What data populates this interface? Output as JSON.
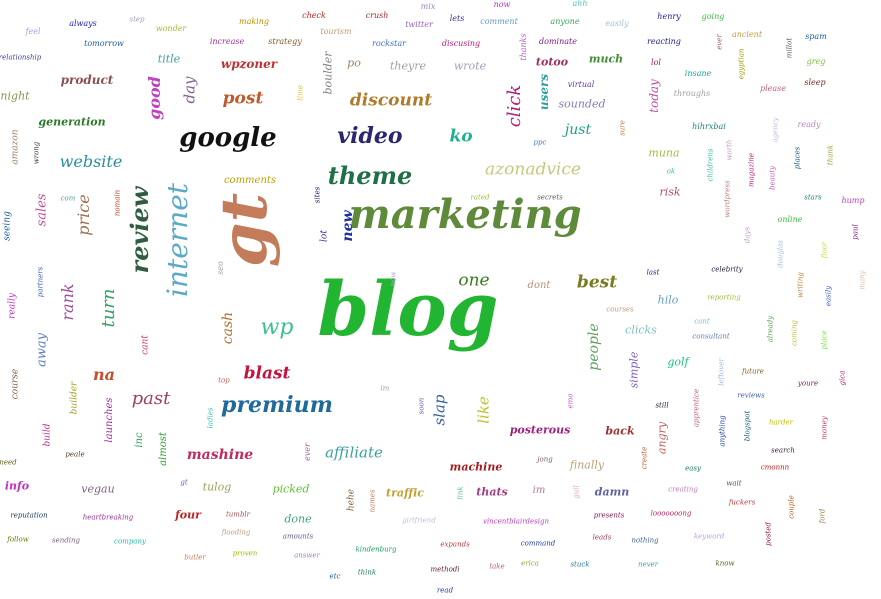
{
  "cloud": {
    "words": [
      {
        "text": "blog",
        "color": "#22b531"
      },
      {
        "text": "marketing",
        "color": "#5e8a3a"
      },
      {
        "text": "gt",
        "color": "#c37b5a"
      },
      {
        "text": "internet",
        "color": "#5aa9c7"
      },
      {
        "text": "google",
        "color": "#111111"
      },
      {
        "text": "theme",
        "color": "#1f6f47"
      },
      {
        "text": "video",
        "color": "#2a2670"
      },
      {
        "text": "premium",
        "color": "#1f6a9a"
      },
      {
        "text": "review",
        "color": "#2f5d3f"
      },
      {
        "text": "azonadvice",
        "color": "#c6c87b"
      },
      {
        "text": "wp",
        "color": "#3cc08f"
      },
      {
        "text": "discount",
        "color": "#b07a2b"
      },
      {
        "text": "website",
        "color": "#2a8f9a"
      },
      {
        "text": "blast",
        "color": "#c4123e"
      },
      {
        "text": "best",
        "color": "#7a7a1f"
      },
      {
        "text": "one",
        "color": "#3a7a1f"
      },
      {
        "text": "click",
        "color": "#b0207a"
      },
      {
        "text": "turn",
        "color": "#3aa26a"
      },
      {
        "text": "rank",
        "color": "#a050a0"
      },
      {
        "text": "price",
        "color": "#a07050"
      },
      {
        "text": "past",
        "color": "#a04060"
      },
      {
        "text": "na",
        "color": "#c05030"
      },
      {
        "text": "post",
        "color": "#c05a2a"
      },
      {
        "text": "affiliate",
        "color": "#3aa0a0"
      },
      {
        "text": "like",
        "color": "#c0c030"
      },
      {
        "text": "slap",
        "color": "#3a60a0"
      },
      {
        "text": "ko",
        "color": "#20b090"
      },
      {
        "text": "just",
        "color": "#20a080"
      },
      {
        "text": "people",
        "color": "#60a060"
      },
      {
        "text": "mashine",
        "color": "#c02a60"
      },
      {
        "text": "sales",
        "color": "#c050a0"
      },
      {
        "text": "away",
        "color": "#6080c0"
      },
      {
        "text": "good",
        "color": "#c040c0"
      },
      {
        "text": "day",
        "color": "#806090"
      },
      {
        "text": "wpzoner",
        "color": "#c03030"
      },
      {
        "text": "cash",
        "color": "#b07030"
      },
      {
        "text": "new",
        "color": "#2030a0"
      },
      {
        "text": "product",
        "color": "#8a5050"
      },
      {
        "text": "generation",
        "color": "#2a7a2a"
      },
      {
        "text": "night",
        "color": "#909050"
      },
      {
        "text": "title",
        "color": "#40a0a0"
      },
      {
        "text": "users",
        "color": "#30a0a0"
      },
      {
        "text": "today",
        "color": "#c050a0"
      },
      {
        "text": "much",
        "color": "#409030"
      },
      {
        "text": "sounded",
        "color": "#8080c0"
      },
      {
        "text": "totoo",
        "color": "#a03060"
      },
      {
        "text": "wrote",
        "color": "#a0a0c0"
      },
      {
        "text": "theyre",
        "color": "#a0a0a0"
      },
      {
        "text": "boulder",
        "color": "#808080"
      },
      {
        "text": "po",
        "color": "#a08060"
      },
      {
        "text": "comments",
        "color": "#c0a000"
      },
      {
        "text": "muna",
        "color": "#a0c040"
      },
      {
        "text": "risk",
        "color": "#b05060"
      },
      {
        "text": "hilo",
        "color": "#60a0c0"
      },
      {
        "text": "golf",
        "color": "#20c080"
      },
      {
        "text": "simple",
        "color": "#8060c0"
      },
      {
        "text": "clicks",
        "color": "#80c0c0"
      },
      {
        "text": "finally",
        "color": "#c0a070"
      },
      {
        "text": "back",
        "color": "#a03030"
      },
      {
        "text": "angry",
        "color": "#c06060"
      },
      {
        "text": "posterous",
        "color": "#a02080"
      },
      {
        "text": "machine",
        "color": "#a02020"
      },
      {
        "text": "thats",
        "color": "#a04080"
      },
      {
        "text": "damn",
        "color": "#6060a0"
      },
      {
        "text": "traffic",
        "color": "#c0a030"
      },
      {
        "text": "picked",
        "color": "#60c030"
      },
      {
        "text": "done",
        "color": "#40a080"
      },
      {
        "text": "four",
        "color": "#c02020"
      },
      {
        "text": "tulog",
        "color": "#a0a060"
      },
      {
        "text": "vegau",
        "color": "#806080"
      },
      {
        "text": "info",
        "color": "#c030c0"
      },
      {
        "text": "inc",
        "color": "#30a060"
      },
      {
        "text": "almost",
        "color": "#30a030"
      },
      {
        "text": "launches",
        "color": "#a030a0"
      },
      {
        "text": "builder",
        "color": "#a0a020"
      },
      {
        "text": "build",
        "color": "#c03080"
      },
      {
        "text": "course",
        "color": "#806040"
      },
      {
        "text": "really",
        "color": "#c030c0"
      },
      {
        "text": "seeing",
        "color": "#2060a0"
      },
      {
        "text": "amazon",
        "color": "#a08060"
      },
      {
        "text": "dont",
        "color": "#c09080"
      },
      {
        "text": "im",
        "color": "#c070a0"
      },
      {
        "text": "hehe",
        "color": "#806040"
      },
      {
        "text": "lot",
        "color": "#3030a0"
      },
      {
        "text": "cant",
        "color": "#c04060"
      },
      {
        "text": "seo",
        "color": "#a0a0a0"
      },
      {
        "text": "ever",
        "color": "#a060a0"
      },
      {
        "text": "feel",
        "color": "#a0a0e0"
      },
      {
        "text": "always",
        "color": "#2020c0"
      },
      {
        "text": "tomorrow",
        "color": "#2060a0"
      },
      {
        "text": "relationship",
        "color": "#4040a0"
      },
      {
        "text": "step",
        "color": "#a0a0c0"
      },
      {
        "text": "wonder",
        "color": "#a0c040"
      },
      {
        "text": "making",
        "color": "#c09000"
      },
      {
        "text": "increase",
        "color": "#a030a0"
      },
      {
        "text": "strategy",
        "color": "#8a5a2a"
      },
      {
        "text": "check",
        "color": "#c02020"
      },
      {
        "text": "tourism",
        "color": "#c0a070"
      },
      {
        "text": "crush",
        "color": "#a03030"
      },
      {
        "text": "rockstar",
        "color": "#4070c0"
      },
      {
        "text": "twitter",
        "color": "#a060c0"
      },
      {
        "text": "mix",
        "color": "#a080c0"
      },
      {
        "text": "lets",
        "color": "#3030a0"
      },
      {
        "text": "discusing",
        "color": "#c02080"
      },
      {
        "text": "now",
        "color": "#c030c0"
      },
      {
        "text": "comment",
        "color": "#60a0c0"
      },
      {
        "text": "ahh",
        "color": "#60c0c0"
      },
      {
        "text": "anyone",
        "color": "#40a060"
      },
      {
        "text": "easily",
        "color": "#a0c0e0"
      },
      {
        "text": "henry",
        "color": "#2020a0"
      },
      {
        "text": "going",
        "color": "#40c040"
      },
      {
        "text": "thanks",
        "color": "#c060c0"
      },
      {
        "text": "dominate",
        "color": "#802080"
      },
      {
        "text": "reacting",
        "color": "#202080"
      },
      {
        "text": "ever",
        "color": "#a06060"
      },
      {
        "text": "ancient",
        "color": "#c0a040"
      },
      {
        "text": "spam",
        "color": "#2060a0"
      },
      {
        "text": "millot",
        "color": "#606060"
      },
      {
        "text": "greg",
        "color": "#80c040"
      },
      {
        "text": "lol",
        "color": "#a02060"
      },
      {
        "text": "insane",
        "color": "#20a0a0"
      },
      {
        "text": "egyptian",
        "color": "#a0a000"
      },
      {
        "text": "virtual",
        "color": "#6040a0"
      },
      {
        "text": "sleep",
        "color": "#802020"
      },
      {
        "text": "please",
        "color": "#c06080"
      },
      {
        "text": "throughs",
        "color": "#a0a0a0"
      },
      {
        "text": "time",
        "color": "#e0c040"
      },
      {
        "text": "hihrxbai",
        "color": "#208080"
      },
      {
        "text": "agency",
        "color": "#c0c0e0"
      },
      {
        "text": "ready",
        "color": "#c080c0"
      },
      {
        "text": "thank",
        "color": "#a0a040"
      },
      {
        "text": "sure",
        "color": "#c08040"
      },
      {
        "text": "ppc",
        "color": "#4080c0"
      },
      {
        "text": "secrets",
        "color": "#606060"
      },
      {
        "text": "rated",
        "color": "#a0c040"
      },
      {
        "text": "ok",
        "color": "#40c0a0"
      },
      {
        "text": "childrens",
        "color": "#40c0a0"
      },
      {
        "text": "worth",
        "color": "#c0a0c0"
      },
      {
        "text": "wordpress",
        "color": "#c08080"
      },
      {
        "text": "magazine",
        "color": "#c02080"
      },
      {
        "text": "beauty",
        "color": "#c060c0"
      },
      {
        "text": "places",
        "color": "#206080"
      },
      {
        "text": "stars",
        "color": "#208080"
      },
      {
        "text": "hump",
        "color": "#c040c0"
      },
      {
        "text": "online",
        "color": "#40c040"
      },
      {
        "text": "paul",
        "color": "#802080"
      },
      {
        "text": "days",
        "color": "#c0a0c0"
      },
      {
        "text": "douglas",
        "color": "#a0c0e0"
      },
      {
        "text": "floor",
        "color": "#c0e040"
      },
      {
        "text": "celebrity",
        "color": "#202040"
      },
      {
        "text": "last",
        "color": "#202080"
      },
      {
        "text": "writing",
        "color": "#c08040"
      },
      {
        "text": "easily",
        "color": "#4060c0"
      },
      {
        "text": "many",
        "color": "#e0c0a0"
      },
      {
        "text": "reporting",
        "color": "#a0c040"
      },
      {
        "text": "courses",
        "color": "#c0a080"
      },
      {
        "text": "cant",
        "color": "#80c0c0"
      },
      {
        "text": "consultant",
        "color": "#6080c0"
      },
      {
        "text": "already",
        "color": "#60a060"
      },
      {
        "text": "coming",
        "color": "#c0c040"
      },
      {
        "text": "place",
        "color": "#80e040"
      },
      {
        "text": "leftover",
        "color": "#a0c0e0"
      },
      {
        "text": "future",
        "color": "#806020"
      },
      {
        "text": "youre",
        "color": "#802060"
      },
      {
        "text": "gica",
        "color": "#c02060"
      },
      {
        "text": "reviews",
        "color": "#4060c0"
      },
      {
        "text": "still",
        "color": "#202040"
      },
      {
        "text": "apprentice",
        "color": "#c06080"
      },
      {
        "text": "anything",
        "color": "#2040a0"
      },
      {
        "text": "blogspot",
        "color": "#206080"
      },
      {
        "text": "harder",
        "color": "#c0c000"
      },
      {
        "text": "money",
        "color": "#c04060"
      },
      {
        "text": "search",
        "color": "#402040"
      },
      {
        "text": "create",
        "color": "#c06040"
      },
      {
        "text": "easy",
        "color": "#208060"
      },
      {
        "text": "wait",
        "color": "#406040"
      },
      {
        "text": "cmonnn",
        "color": "#c02020"
      },
      {
        "text": "creating",
        "color": "#c080c0"
      },
      {
        "text": "fuckers",
        "color": "#c04040"
      },
      {
        "text": "couple",
        "color": "#c06020"
      },
      {
        "text": "ford",
        "color": "#a08040"
      },
      {
        "text": "presents",
        "color": "#802060"
      },
      {
        "text": "looooooong",
        "color": "#c02060"
      },
      {
        "text": "posted",
        "color": "#a02040"
      },
      {
        "text": "keyword",
        "color": "#c0a0e0"
      },
      {
        "text": "leads",
        "color": "#a04060"
      },
      {
        "text": "nothing",
        "color": "#4060a0"
      },
      {
        "text": "never",
        "color": "#40a0c0"
      },
      {
        "text": "know",
        "color": "#606020"
      },
      {
        "text": "stuck",
        "color": "#2080a0"
      },
      {
        "text": "command",
        "color": "#2040a0"
      },
      {
        "text": "erica",
        "color": "#a0a040"
      },
      {
        "text": "take",
        "color": "#c06080"
      },
      {
        "text": "vincentblairdesign",
        "color": "#c040c0"
      },
      {
        "text": "expands",
        "color": "#c04040"
      },
      {
        "text": "methodi",
        "color": "#602040"
      },
      {
        "text": "read",
        "color": "#2040a0"
      },
      {
        "text": "girlfriend",
        "color": "#c0c0e0"
      },
      {
        "text": "think",
        "color": "#208060"
      },
      {
        "text": "kindenburg",
        "color": "#20a060"
      },
      {
        "text": "etc",
        "color": "#2060a0"
      },
      {
        "text": "answer",
        "color": "#a080c0"
      },
      {
        "text": "amounts",
        "color": "#6060a0"
      },
      {
        "text": "proven",
        "color": "#a0c000"
      },
      {
        "text": "tumblr",
        "color": "#a05050"
      },
      {
        "text": "flooding",
        "color": "#c0a080"
      },
      {
        "text": "butler",
        "color": "#c08060"
      },
      {
        "text": "company",
        "color": "#20c0a0"
      },
      {
        "text": "sending",
        "color": "#806080"
      },
      {
        "text": "follow",
        "color": "#608000"
      },
      {
        "text": "heartbreaking",
        "color": "#a030a0"
      },
      {
        "text": "reputation",
        "color": "#204060"
      },
      {
        "text": "need",
        "color": "#606020"
      },
      {
        "text": "peale",
        "color": "#604020"
      },
      {
        "text": "gt",
        "color": "#6060c0"
      },
      {
        "text": "ladies",
        "color": "#40c0c0"
      },
      {
        "text": "top",
        "color": "#c06060"
      },
      {
        "text": "names",
        "color": "#c08060"
      },
      {
        "text": "link",
        "color": "#60c0a0"
      },
      {
        "text": "guil",
        "color": "#e0a0c0"
      },
      {
        "text": "jong",
        "color": "#806060"
      },
      {
        "text": "emo",
        "color": "#c060c0"
      },
      {
        "text": "soon",
        "color": "#6060c0"
      },
      {
        "text": "im",
        "color": "#a0a0a0"
      },
      {
        "text": "now",
        "color": "#c0a0e0"
      },
      {
        "text": "com",
        "color": "#60a0a0"
      },
      {
        "text": "nomain",
        "color": "#c04020"
      },
      {
        "text": "wrong",
        "color": "#404040"
      },
      {
        "text": "partners",
        "color": "#4060c0"
      },
      {
        "text": "sites",
        "color": "#202060"
      }
    ]
  }
}
